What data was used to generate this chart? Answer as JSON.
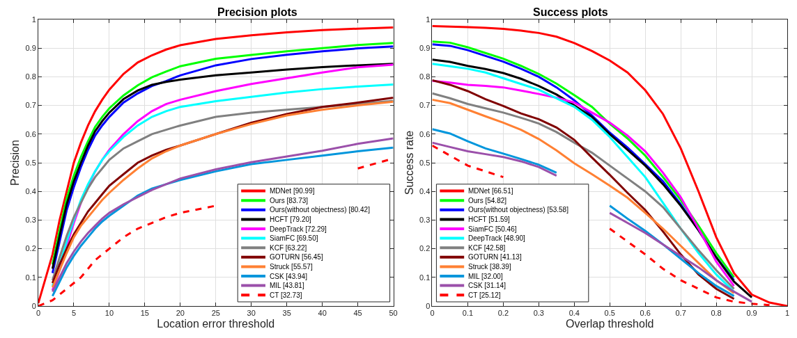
{
  "chart_data": [
    {
      "type": "line",
      "title": "Precision plots",
      "xlabel": "Location error threshold",
      "ylabel": "Precision",
      "x": [
        0,
        2,
        3,
        4,
        5,
        6,
        7,
        8,
        9,
        10,
        12,
        14,
        16,
        18,
        20,
        25,
        30,
        35,
        40,
        45,
        50
      ],
      "xlim": [
        0,
        50
      ],
      "xticks": [
        0,
        5,
        10,
        15,
        20,
        25,
        30,
        35,
        40,
        45,
        50
      ],
      "ylim": [
        0,
        1
      ],
      "yticks": [
        0,
        0.1,
        0.2,
        0.3,
        0.4,
        0.5,
        0.6,
        0.7,
        0.8,
        0.9,
        1
      ],
      "grid": true,
      "legend": "bottom right",
      "line_style": "solid",
      "marker": "none",
      "series": [
        {
          "name": "MDNet [90.99]",
          "color": "#ff0000",
          "values": [
            0.01,
            0.18,
            0.3,
            0.4,
            0.5,
            0.57,
            0.63,
            0.68,
            0.72,
            0.755,
            0.81,
            0.85,
            0.875,
            0.895,
            0.91,
            0.932,
            0.945,
            0.955,
            0.963,
            0.968,
            0.972
          ]
        },
        {
          "name": "Ours [83.73]",
          "color": "#00ff00",
          "values": [
            null,
            0.145,
            0.265,
            0.375,
            0.455,
            0.52,
            0.575,
            0.625,
            0.66,
            0.69,
            0.735,
            0.77,
            0.798,
            0.818,
            0.837,
            0.863,
            0.876,
            0.889,
            0.9,
            0.911,
            0.918
          ]
        },
        {
          "name": "Ours(without objectness) [80.42]",
          "color": "#0000ff",
          "values": [
            null,
            0.115,
            0.225,
            0.335,
            0.415,
            0.485,
            0.545,
            0.595,
            0.63,
            0.66,
            0.71,
            0.742,
            0.768,
            0.785,
            0.805,
            0.84,
            0.862,
            0.877,
            0.889,
            0.899,
            0.906
          ]
        },
        {
          "name": "HCFT [79.20]",
          "color": "#000000",
          "values": [
            null,
            0.13,
            0.245,
            0.355,
            0.435,
            0.5,
            0.56,
            0.61,
            0.645,
            0.675,
            0.722,
            0.752,
            0.772,
            0.782,
            0.79,
            0.805,
            0.815,
            0.825,
            0.834,
            0.84,
            0.845
          ]
        },
        {
          "name": "DeepTrack [72.29]",
          "color": "#ff00ff",
          "values": [
            null,
            0.055,
            0.125,
            0.21,
            0.29,
            0.36,
            0.42,
            0.47,
            0.51,
            0.545,
            0.6,
            0.645,
            0.68,
            0.705,
            0.72,
            0.75,
            0.775,
            0.795,
            0.815,
            0.833,
            0.842
          ]
        },
        {
          "name": "SiamFC [69.50]",
          "color": "#00ffff",
          "values": [
            null,
            0.07,
            0.145,
            0.225,
            0.3,
            0.37,
            0.425,
            0.47,
            0.51,
            0.54,
            0.59,
            0.63,
            0.66,
            0.68,
            0.695,
            0.715,
            0.73,
            0.745,
            0.757,
            0.766,
            0.773
          ]
        },
        {
          "name": "KCF [63.22]",
          "color": "#808080",
          "values": [
            null,
            0.09,
            0.17,
            0.245,
            0.31,
            0.36,
            0.41,
            0.45,
            0.48,
            0.51,
            0.55,
            0.575,
            0.6,
            0.615,
            0.63,
            0.66,
            0.675,
            0.685,
            0.695,
            0.705,
            0.716
          ]
        },
        {
          "name": "GOTURN [56.45]",
          "color": "#800000",
          "values": [
            null,
            0.08,
            0.145,
            0.2,
            0.25,
            0.29,
            0.33,
            0.36,
            0.39,
            0.42,
            0.46,
            0.5,
            0.525,
            0.545,
            0.56,
            0.6,
            0.64,
            0.67,
            0.695,
            0.71,
            0.727
          ]
        },
        {
          "name": "Struck [55.57]",
          "color": "#ff8033",
          "values": [
            null,
            0.065,
            0.125,
            0.185,
            0.24,
            0.28,
            0.31,
            0.34,
            0.37,
            0.395,
            0.44,
            0.48,
            0.515,
            0.54,
            0.56,
            0.6,
            0.635,
            0.665,
            0.685,
            0.7,
            0.713
          ]
        },
        {
          "name": "CSK [43.94]",
          "color": "#0096dc",
          "values": [
            null,
            0.035,
            0.085,
            0.135,
            0.175,
            0.21,
            0.24,
            0.27,
            0.295,
            0.315,
            0.35,
            0.385,
            0.41,
            0.425,
            0.44,
            0.47,
            0.495,
            0.51,
            0.525,
            0.54,
            0.553
          ]
        },
        {
          "name": "MIL [43.81]",
          "color": "#9b50aa",
          "values": [
            null,
            0.05,
            0.1,
            0.15,
            0.19,
            0.225,
            0.255,
            0.28,
            0.305,
            0.325,
            0.355,
            0.38,
            0.405,
            0.425,
            0.445,
            0.477,
            0.502,
            0.522,
            0.542,
            0.566,
            0.585
          ]
        },
        {
          "name": "CT [32.73]",
          "color": "#ff0000",
          "line_style": "dashed",
          "values": [
            0,
            0.02,
            0.04,
            0.06,
            0.08,
            0.1,
            0.13,
            0.16,
            0.18,
            0.2,
            0.24,
            0.27,
            0.29,
            0.31,
            0.325,
            0.35,
            null,
            null,
            null,
            0.48,
            0.515
          ]
        }
      ]
    },
    {
      "type": "line",
      "title": "Success plots",
      "xlabel": "Overlap threshold",
      "ylabel": "Success rate",
      "x": [
        0,
        0.05,
        0.1,
        0.15,
        0.2,
        0.25,
        0.3,
        0.35,
        0.4,
        0.45,
        0.5,
        0.55,
        0.6,
        0.65,
        0.7,
        0.75,
        0.8,
        0.85,
        0.9,
        0.95,
        1
      ],
      "xlim": [
        0,
        1
      ],
      "xticks": [
        0,
        0.1,
        0.2,
        0.3,
        0.4,
        0.5,
        0.6,
        0.7,
        0.8,
        0.9,
        1
      ],
      "ylim": [
        0,
        1
      ],
      "yticks": [
        0,
        0.1,
        0.2,
        0.3,
        0.4,
        0.5,
        0.6,
        0.7,
        0.8,
        0.9,
        1
      ],
      "grid": true,
      "legend": "bottom left",
      "line_style": "solid",
      "marker": "none",
      "series": [
        {
          "name": "MDNet [66.51]",
          "color": "#ff0000",
          "values": [
            0.977,
            0.975,
            0.973,
            0.971,
            0.967,
            0.961,
            0.953,
            0.94,
            0.918,
            0.89,
            0.857,
            0.815,
            0.753,
            0.67,
            0.55,
            0.4,
            0.24,
            0.115,
            0.04,
            0.012,
            0
          ]
        },
        {
          "name": "Ours [54.82]",
          "color": "#00ff00",
          "values": [
            0.923,
            0.919,
            0.903,
            0.883,
            0.863,
            0.838,
            0.81,
            0.776,
            0.736,
            0.695,
            0.636,
            0.585,
            0.525,
            0.45,
            0.37,
            0.28,
            0.185,
            0.1,
            null,
            null,
            null
          ]
        },
        {
          "name": "Ours(without objectness) [53.58]",
          "color": "#0000ff",
          "values": [
            0.913,
            0.908,
            0.893,
            0.873,
            0.853,
            0.828,
            0.8,
            0.763,
            0.718,
            0.665,
            0.605,
            0.553,
            0.495,
            0.435,
            0.355,
            0.265,
            0.17,
            0.09,
            null,
            null,
            null
          ]
        },
        {
          "name": "HCFT [51.59]",
          "color": "#000000",
          "values": [
            0.86,
            0.852,
            0.838,
            0.827,
            0.813,
            0.793,
            0.768,
            0.738,
            0.7,
            0.66,
            0.6,
            0.545,
            0.49,
            0.425,
            0.35,
            0.265,
            0.17,
            0.085,
            0.03,
            null,
            null
          ]
        },
        {
          "name": "SiamFC [50.46]",
          "color": "#ff00ff",
          "values": [
            0.786,
            0.78,
            0.772,
            0.768,
            0.763,
            0.752,
            0.74,
            0.727,
            0.71,
            0.675,
            0.64,
            0.595,
            0.54,
            0.465,
            0.38,
            0.27,
            0.155,
            0.07,
            null,
            null,
            null
          ]
        },
        {
          "name": "DeepTrack [48.90]",
          "color": "#00ffff",
          "values": [
            0.845,
            0.837,
            0.828,
            0.815,
            0.795,
            0.775,
            0.755,
            0.725,
            0.695,
            0.65,
            0.59,
            0.52,
            0.45,
            0.36,
            0.27,
            0.185,
            0.11,
            0.05,
            null,
            null,
            null
          ]
        },
        {
          "name": "KCF [42.58]",
          "color": "#808080",
          "values": [
            0.742,
            0.725,
            0.705,
            0.69,
            0.675,
            0.657,
            0.637,
            0.607,
            0.57,
            0.535,
            0.49,
            0.445,
            0.4,
            0.345,
            0.27,
            0.195,
            0.125,
            0.06,
            null,
            null,
            null
          ]
        },
        {
          "name": "GOTURN [41.13]",
          "color": "#800000",
          "values": [
            0.788,
            0.772,
            0.75,
            0.722,
            0.698,
            0.672,
            0.652,
            0.623,
            0.58,
            0.518,
            0.458,
            0.395,
            0.335,
            0.26,
            0.18,
            0.11,
            0.06,
            0.025,
            null,
            null,
            null
          ]
        },
        {
          "name": "Struck [38.39]",
          "color": "#ff8033",
          "values": [
            0.72,
            0.708,
            0.685,
            0.662,
            0.64,
            0.615,
            0.583,
            0.543,
            0.498,
            0.46,
            0.42,
            0.378,
            0.325,
            0.27,
            0.21,
            0.15,
            0.09,
            0.045,
            null,
            null,
            null
          ]
        },
        {
          "name": "MIL [32.00]",
          "color": "#0096dc",
          "values": [
            0.617,
            0.602,
            0.575,
            0.55,
            0.532,
            0.513,
            0.493,
            0.465,
            null,
            null,
            0.35,
            0.305,
            0.262,
            0.215,
            0.165,
            0.115,
            0.07,
            0.035,
            null,
            null,
            null
          ]
        },
        {
          "name": "CSK [31.14]",
          "color": "#9b50aa",
          "values": [
            0.57,
            0.555,
            0.54,
            0.53,
            0.52,
            0.505,
            0.485,
            0.455,
            null,
            null,
            0.325,
            0.29,
            0.255,
            0.215,
            0.175,
            0.135,
            0.09,
            0.05,
            0.015,
            null,
            null
          ]
        },
        {
          "name": "CT [25.12]",
          "color": "#ff0000",
          "line_style": "dashed",
          "values": [
            0.56,
            0.525,
            0.49,
            0.47,
            0.45,
            null,
            null,
            null,
            null,
            null,
            0.27,
            0.225,
            0.18,
            0.13,
            0.09,
            0.06,
            0.03,
            0.015,
            0.008,
            0.003,
            null
          ]
        }
      ]
    }
  ]
}
